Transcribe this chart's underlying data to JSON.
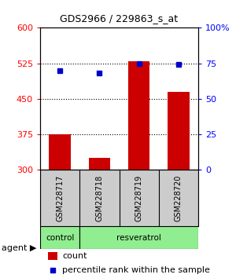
{
  "title": "GDS2966 / 229863_s_at",
  "samples": [
    "GSM228717",
    "GSM228718",
    "GSM228719",
    "GSM228720"
  ],
  "bar_values": [
    375,
    325,
    530,
    465
  ],
  "bar_baseline": 300,
  "percentile_values": [
    70,
    68,
    75,
    74
  ],
  "ylim_left": [
    300,
    600
  ],
  "ylim_right": [
    0,
    100
  ],
  "yticks_left": [
    300,
    375,
    450,
    525,
    600
  ],
  "yticks_right": [
    0,
    25,
    50,
    75,
    100
  ],
  "ytick_labels_right": [
    "0",
    "25",
    "50",
    "75",
    "100%"
  ],
  "bar_color": "#cc0000",
  "percentile_color": "#0000cc",
  "group_label": "agent",
  "legend_count_label": "count",
  "legend_pct_label": "percentile rank within the sample",
  "sample_box_color": "#cccccc",
  "agent_green": "#90ee90",
  "background_color": "#ffffff"
}
